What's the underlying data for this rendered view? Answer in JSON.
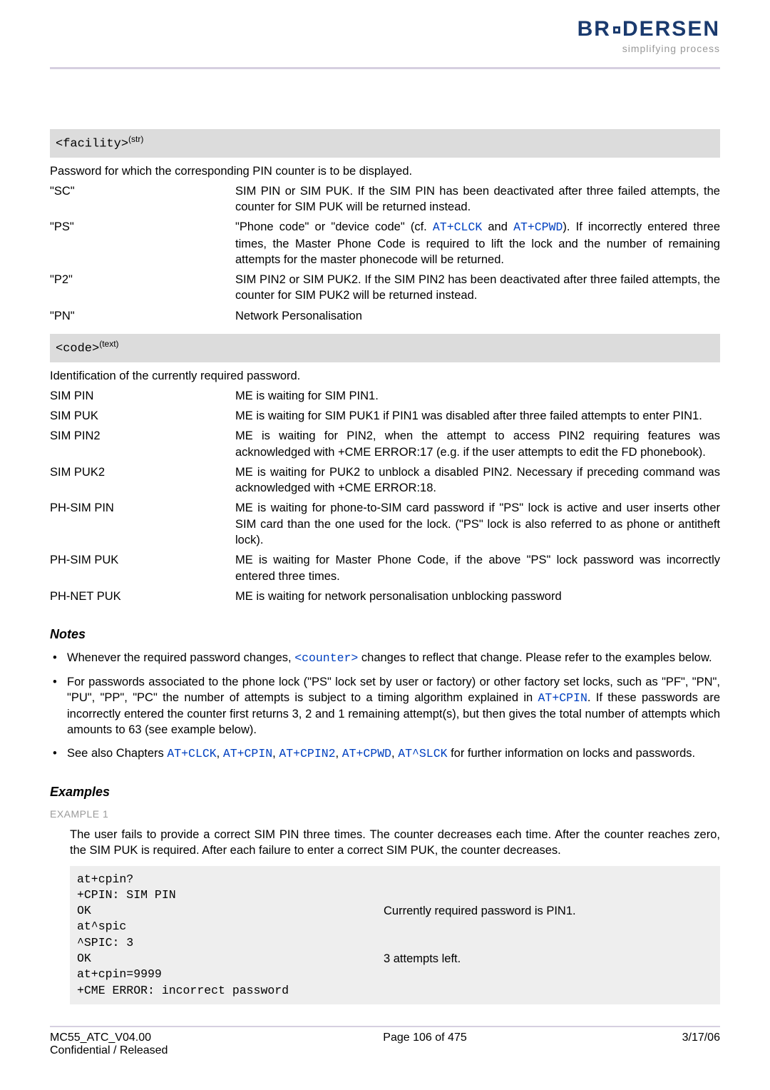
{
  "brand": {
    "name": "BRODERSEN",
    "tagline": "simplifying process"
  },
  "facility": {
    "header_code": "<facility>",
    "header_sup": "(str)",
    "intro": "Password for which the corresponding PIN counter is to be displayed.",
    "rows": [
      {
        "k": "\"SC\"",
        "v": "SIM PIN or SIM PUK. If the SIM PIN has been deactivated after three failed attempts, the counter for SIM PUK will be returned instead."
      },
      {
        "k": "\"PS\"",
        "v_pre": "\"Phone code\" or \"device code\" (cf. ",
        "link1": "AT+CLCK",
        "mid": " and ",
        "link2": "AT+CPWD",
        "v_post": "). If incorrectly entered three times, the Master Phone Code is required to lift the lock and the number of remaining attempts for the master phonecode will be returned."
      },
      {
        "k": "\"P2\"",
        "v": "SIM PIN2 or SIM PUK2. If the SIM PIN2 has been deactivated after three failed attempts, the counter for SIM PUK2 will be returned instead."
      },
      {
        "k": "\"PN\"",
        "v": "Network Personalisation"
      }
    ]
  },
  "code": {
    "header_code": "<code>",
    "header_sup": "(text)",
    "intro": "Identification of the currently required password.",
    "rows": [
      {
        "k": "SIM PIN",
        "v": "ME is waiting for SIM PIN1."
      },
      {
        "k": "SIM PUK",
        "v": "ME is waiting for SIM PUK1 if PIN1 was disabled after three failed attempts to enter PIN1."
      },
      {
        "k": "SIM PIN2",
        "v": "ME is waiting for PIN2, when the attempt to access PIN2 requiring features was acknowledged with +CME ERROR:17 (e.g. if the user attempts to edit the FD phonebook)."
      },
      {
        "k": "SIM PUK2",
        "v": "ME is waiting for PUK2 to unblock a disabled PIN2. Necessary if preceding command was acknowledged with +CME ERROR:18."
      },
      {
        "k": "PH-SIM PIN",
        "v": "ME is waiting for phone-to-SIM card password if \"PS\" lock is active and user inserts other SIM card than the one used for the lock. (\"PS\" lock is also referred to as phone or antitheft lock)."
      },
      {
        "k": "PH-SIM PUK",
        "v": "ME is waiting for Master Phone Code, if the above \"PS\" lock password was incorrectly entered three times."
      },
      {
        "k": "PH-NET PUK",
        "v": "ME is waiting for network personalisation unblocking password"
      }
    ]
  },
  "notes": {
    "heading": "Notes",
    "n1_pre": "Whenever the required password changes, ",
    "n1_link": "<counter>",
    "n1_post": " changes to reflect that change. Please refer to the examples below.",
    "n2_pre": "For passwords associated to the phone lock (\"PS\" lock set by user or factory) or other factory set locks, such as \"PF\", \"PN\", \"PU\", \"PP\", \"PC\" the number of attempts is subject to a timing algorithm explained in ",
    "n2_link": "AT+CPIN",
    "n2_post": ". If these passwords are incorrectly entered the counter first returns 3, 2 and 1 remaining attempt(s), but then gives the total number of attempts which amounts to 63 (see example below).",
    "n3_pre": "See also Chapters ",
    "n3_l1": "AT+CLCK",
    "n3_c1": ", ",
    "n3_l2": "AT+CPIN",
    "n3_c2": ", ",
    "n3_l3": "AT+CPIN2",
    "n3_c3": ", ",
    "n3_l4": "AT+CPWD",
    "n3_c4": ", ",
    "n3_l5": "AT^SLCK",
    "n3_post": " for further information on locks and passwords."
  },
  "examples": {
    "heading": "Examples",
    "label": "EXAMPLE 1",
    "intro": "The user fails to provide a correct SIM PIN three times. The counter decreases each time. After the counter reaches zero, the SIM PUK is required. After each failure to enter a correct SIM PUK, the counter decreases.",
    "lines": [
      {
        "l": "at+cpin?",
        "r": ""
      },
      {
        "l": "+CPIN: SIM PIN",
        "r": ""
      },
      {
        "l": "OK",
        "r": "Currently required password is PIN1."
      },
      {
        "l": "at^spic",
        "r": ""
      },
      {
        "l": "^SPIC: 3",
        "r": ""
      },
      {
        "l": "OK",
        "r": "3 attempts left."
      },
      {
        "l": "at+cpin=9999",
        "r": ""
      },
      {
        "l": "+CME ERROR: incorrect password",
        "r": ""
      }
    ]
  },
  "footer": {
    "left1": "MC55_ATC_V04.00",
    "left2": "Confidential / Released",
    "center": "Page 106 of 475",
    "right": "3/17/06"
  }
}
